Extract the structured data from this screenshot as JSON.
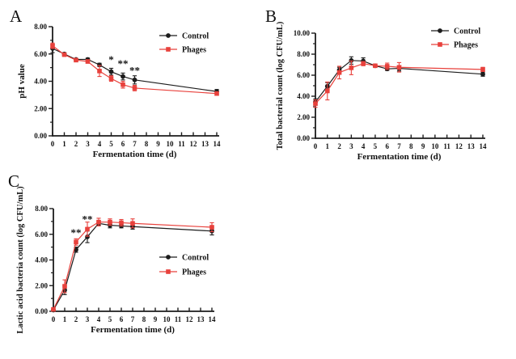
{
  "figure": {
    "background": "#ffffff",
    "axis_color": "#1c1c1c",
    "text_color": "#111111"
  },
  "chart_data": [
    {
      "id": "A",
      "panel_label": "A",
      "type": "line",
      "title": "",
      "xlabel": "Fermentation time (d)",
      "ylabel": "pH value",
      "xmin": 0,
      "xmax": 14,
      "ymin": 0,
      "ymax": 8,
      "ymajor": 2,
      "yminor": 1,
      "ytick_labels": [
        "0.00",
        "2.00",
        "4.00",
        "6.00",
        "8.00"
      ],
      "xticks": [
        0,
        1,
        2,
        3,
        4,
        5,
        6,
        7,
        8,
        9,
        10,
        11,
        12,
        13,
        14
      ],
      "x": [
        0,
        1,
        2,
        3,
        4,
        5,
        6,
        7,
        14
      ],
      "grid": false,
      "legend_position": "top-right",
      "series": [
        {
          "name": "Control",
          "marker": "circle",
          "color": "#1c1c1c",
          "values": [
            6.4,
            6.0,
            5.6,
            5.6,
            5.2,
            4.7,
            4.35,
            4.1,
            3.25
          ],
          "errors": [
            0.3,
            0.1,
            0.08,
            0.1,
            0.12,
            0.25,
            0.25,
            0.3,
            0.15
          ]
        },
        {
          "name": "Phages",
          "marker": "square",
          "color": "#e8413c",
          "values": [
            6.6,
            5.95,
            5.55,
            5.45,
            4.75,
            4.2,
            3.75,
            3.5,
            3.1
          ],
          "errors": [
            0.2,
            0.1,
            0.08,
            0.12,
            0.4,
            0.2,
            0.25,
            0.2,
            0.12
          ]
        }
      ],
      "annotations": [
        {
          "x": 5,
          "y": 5.75,
          "text": "*"
        },
        {
          "x": 6,
          "y": 5.45,
          "text": "**"
        },
        {
          "x": 7,
          "y": 4.95,
          "text": "**"
        }
      ]
    },
    {
      "id": "B",
      "panel_label": "B",
      "type": "line",
      "title": "",
      "xlabel": "Fermentation time (d)",
      "ylabel": "Total bacterial count (log CFU/mL)",
      "xmin": 0,
      "xmax": 14,
      "ymin": 0,
      "ymax": 10,
      "ymajor": 2,
      "yminor": 1,
      "ytick_labels": [
        "0.00",
        "2.00",
        "4.00",
        "6.00",
        "8.00",
        "10.00"
      ],
      "xticks": [
        0,
        1,
        2,
        3,
        4,
        5,
        6,
        7,
        8,
        9,
        10,
        11,
        12,
        13,
        14
      ],
      "x": [
        0,
        1,
        2,
        3,
        4,
        5,
        6,
        7,
        14
      ],
      "grid": false,
      "legend_position": "top-right",
      "series": [
        {
          "name": "Control",
          "marker": "circle",
          "color": "#1c1c1c",
          "values": [
            3.45,
            4.95,
            6.5,
            7.4,
            7.35,
            6.9,
            6.6,
            6.65,
            6.1
          ],
          "errors": [
            0.3,
            0.35,
            0.25,
            0.35,
            0.3,
            0.1,
            0.15,
            0.25,
            0.2
          ]
        },
        {
          "name": "Phages",
          "marker": "square",
          "color": "#e8413c",
          "values": [
            3.3,
            4.5,
            6.25,
            6.7,
            7.1,
            6.9,
            6.85,
            6.75,
            6.55
          ],
          "errors": [
            0.35,
            0.85,
            0.6,
            0.65,
            0.2,
            0.1,
            0.3,
            0.45,
            0.2
          ]
        }
      ],
      "annotations": []
    },
    {
      "id": "C",
      "panel_label": "C",
      "type": "line",
      "title": "",
      "xlabel": "Fermentation time (d)",
      "ylabel": "Lactic acid bacteria count (log CFU/mL)",
      "xmin": 0,
      "xmax": 14,
      "ymin": 0,
      "ymax": 8,
      "ymajor": 2,
      "yminor": 1,
      "ytick_labels": [
        "0.00",
        "2.00",
        "4.00",
        "6.00",
        "8.00"
      ],
      "xticks": [
        0,
        1,
        2,
        3,
        4,
        5,
        6,
        7,
        8,
        9,
        10,
        11,
        12,
        13,
        14
      ],
      "x": [
        0,
        1,
        2,
        3,
        4,
        5,
        6,
        7,
        14
      ],
      "grid": false,
      "legend_position": "middle-right",
      "series": [
        {
          "name": "Control",
          "marker": "circle",
          "color": "#1c1c1c",
          "values": [
            0.1,
            1.65,
            4.8,
            5.8,
            6.85,
            6.7,
            6.65,
            6.6,
            6.25
          ],
          "errors": [
            0.05,
            0.35,
            0.2,
            0.45,
            0.15,
            0.2,
            0.15,
            0.2,
            0.3
          ]
        },
        {
          "name": "Phages",
          "marker": "square",
          "color": "#e8413c",
          "values": [
            0.15,
            1.95,
            5.4,
            6.4,
            6.95,
            6.95,
            6.9,
            6.85,
            6.55
          ],
          "errors": [
            0.05,
            0.5,
            0.25,
            0.55,
            0.3,
            0.25,
            0.25,
            0.35,
            0.35
          ]
        }
      ],
      "annotations": [
        {
          "x": 2,
          "y": 6.3,
          "text": "**"
        },
        {
          "x": 3,
          "y": 7.35,
          "text": "**"
        }
      ]
    }
  ]
}
